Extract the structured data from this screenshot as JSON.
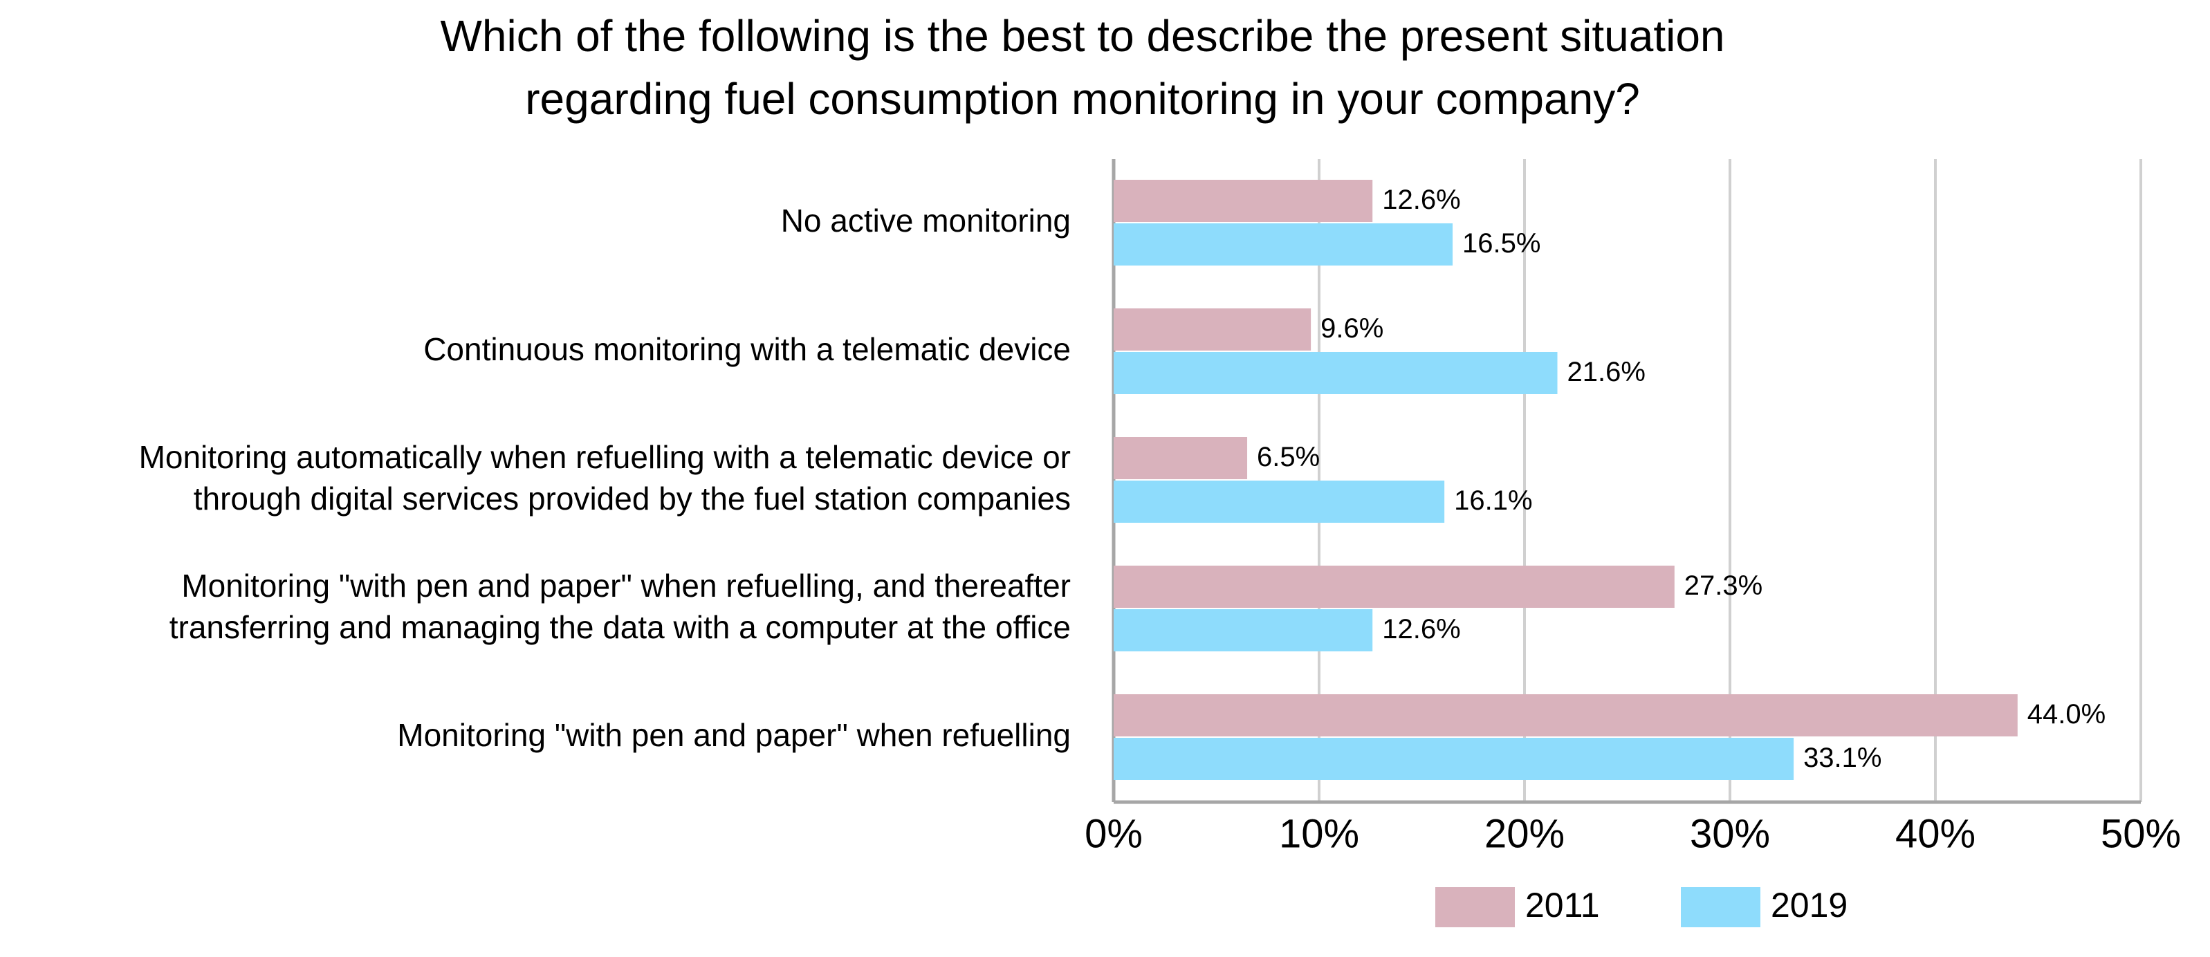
{
  "chart_data": {
    "type": "bar",
    "orientation": "horizontal",
    "title_lines": [
      "Which of the following is the best to describe the present situation",
      "regarding fuel consumption monitoring in your company?"
    ],
    "categories": [
      [
        "No active monitoring"
      ],
      [
        "Continuous monitoring with a telematic device"
      ],
      [
        "Monitoring automatically when refuelling with a telematic device or",
        "through digital services provided by the fuel station companies"
      ],
      [
        "Monitoring \"with pen and paper\" when refuelling, and thereafter",
        "transferring and managing the data with a computer at the office"
      ],
      [
        "Monitoring \"with pen and paper\" when refuelling"
      ]
    ],
    "series": [
      {
        "name": "2011",
        "color": "#d9b2bc",
        "values": [
          12.6,
          9.6,
          6.5,
          27.3,
          44.0
        ],
        "labels": [
          "12.6%",
          "9.6%",
          "6.5%",
          "27.3%",
          "44.0%"
        ]
      },
      {
        "name": "2019",
        "color": "#8edcfc",
        "values": [
          16.5,
          21.6,
          16.1,
          12.6,
          33.1
        ],
        "labels": [
          "16.5%",
          "21.6%",
          "16.1%",
          "12.6%",
          "33.1%"
        ]
      }
    ],
    "xlim": [
      0,
      50
    ],
    "xticks": [
      0,
      10,
      20,
      30,
      40,
      50
    ],
    "xtick_labels": [
      "0%",
      "10%",
      "20%",
      "30%",
      "40%",
      "50%"
    ],
    "grid": true,
    "legend_position": "bottom"
  }
}
